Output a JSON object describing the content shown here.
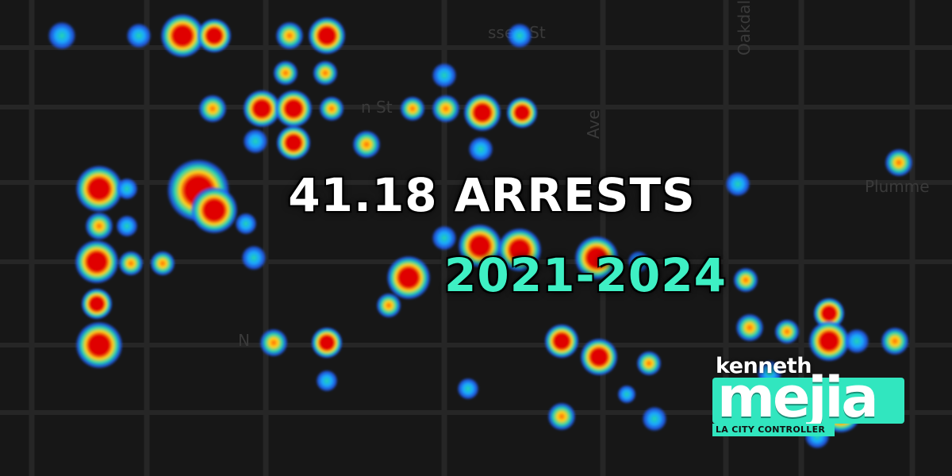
{
  "headline": {
    "title": "41.18 ARRESTS",
    "years": "2021-2024"
  },
  "logo": {
    "first_name": "kenneth",
    "last_name": "mejia",
    "subtitle": "LA CITY CONTROLLER",
    "accent_color": "#31e6bf"
  },
  "map": {
    "street_labels": [
      "ssen St",
      "Oakdale A",
      "n St",
      "Ave",
      "Plumme",
      "N"
    ],
    "heat_colors": {
      "low": "#1f5fff",
      "mid": "#22d3b0",
      "high": "#ffd21a",
      "peak": "#e00000"
    }
  }
}
